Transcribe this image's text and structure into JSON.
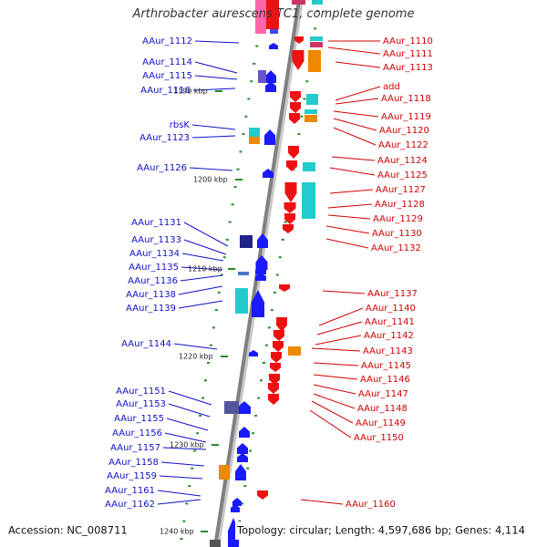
{
  "title": "Arthrobacter aurescens TC1, complete genome",
  "footer": {
    "accession": "Accession: NC_008711",
    "summary": "Topology: circular; Length: 4,597,686 bp; Genes: 4,114"
  },
  "colors": {
    "left_label": "#1010c8",
    "right_label": "#d00000",
    "forward_gene": "#1a1aff",
    "reverse_gene": "#ee1111",
    "backbone": "#808080",
    "tick": "#2a8a2a"
  },
  "kbp_ticks": [
    "1190 kbp",
    "1200 kbp",
    "1210 kbp",
    "1220 kbp",
    "1230 kbp",
    "1240 kbp"
  ],
  "left_labels": [
    "AAur_1112",
    "AAur_1114",
    "AAur_1115",
    "AAur_1116",
    "rbsK",
    "AAur_1123",
    "AAur_1126",
    "AAur_1131",
    "AAur_1133",
    "AAur_1134",
    "AAur_1135",
    "AAur_1136",
    "AAur_1138",
    "AAur_1139",
    "AAur_1144",
    "AAur_1151",
    "AAur_1153",
    "AAur_1155",
    "AAur_1156",
    "AAur_1157",
    "AAur_1158",
    "AAur_1159",
    "AAur_1161",
    "AAur_1162"
  ],
  "right_labels": [
    "AAur_1110",
    "AAur_1111",
    "AAur_1113",
    "add",
    "AAur_1118",
    "AAur_1119",
    "AAur_1120",
    "AAur_1122",
    "AAur_1124",
    "AAur_1125",
    "AAur_1127",
    "AAur_1128",
    "AAur_1129",
    "AAur_1130",
    "AAur_1132",
    "AAur_1137",
    "AAur_1140",
    "AAur_1141",
    "AAur_1142",
    "AAur_1143",
    "AAur_1145",
    "AAur_1146",
    "AAur_1147",
    "AAur_1148",
    "AAur_1149",
    "AAur_1150",
    "AAur_1160"
  ]
}
